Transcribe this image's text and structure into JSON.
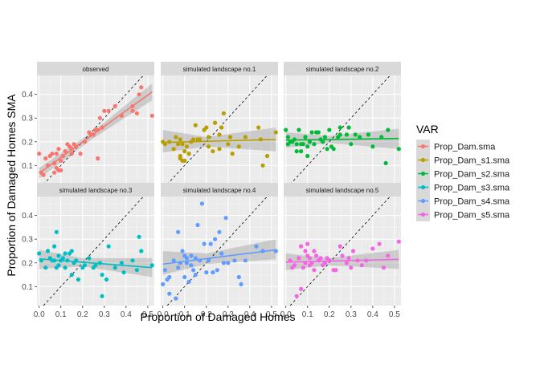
{
  "chart_data": {
    "type": "scatter",
    "facet_layout": "2x3 grid",
    "xlabel": "Proportion of Damaged Homes",
    "ylabel": "Proportion of Damaged Homes SMA",
    "xlim": [
      -0.01,
      0.53
    ],
    "ylim": [
      0.02,
      0.48
    ],
    "x_ticks": [
      0.0,
      0.1,
      0.2,
      0.3,
      0.4,
      0.5
    ],
    "x_tick_labels": [
      "0.0",
      "0.1",
      "0.2",
      "0.3",
      "0.4",
      "0.5"
    ],
    "y_ticks": [
      0.1,
      0.2,
      0.3,
      0.4
    ],
    "y_tick_labels": [
      "0.1",
      "0.2",
      "0.3",
      "0.4"
    ],
    "grid": true,
    "reference_line": "y = x (dashed)",
    "smooth": "linear fit with confidence band",
    "legend": {
      "title": "VAR",
      "placement": "right",
      "entries": [
        "Prop_Dam.sma",
        "Prop_Dam_s1.sma",
        "Prop_Dam_s2.sma",
        "Prop_Dam_s3.sma",
        "Prop_Dam_s4.sma",
        "Prop_Dam_s5.sma"
      ]
    },
    "panels": [
      {
        "strip": "observed",
        "series": "Prop_Dam.sma",
        "color": "#F8766D",
        "fit": {
          "x": [
            0.0,
            0.52
          ],
          "y": [
            0.068,
            0.41
          ]
        },
        "band": {
          "x": [
            0.0,
            0.25,
            0.52
          ],
          "lo": [
            0.045,
            0.215,
            0.375
          ],
          "hi": [
            0.09,
            0.245,
            0.445
          ]
        },
        "points": [
          [
            0.0,
            0.15
          ],
          [
            0.01,
            0.07
          ],
          [
            0.02,
            0.06
          ],
          [
            0.03,
            0.13
          ],
          [
            0.04,
            0.1
          ],
          [
            0.05,
            0.14
          ],
          [
            0.06,
            0.15
          ],
          [
            0.07,
            0.11
          ],
          [
            0.07,
            0.07
          ],
          [
            0.08,
            0.15
          ],
          [
            0.08,
            0.09
          ],
          [
            0.09,
            0.17
          ],
          [
            0.09,
            0.08
          ],
          [
            0.1,
            0.12
          ],
          [
            0.1,
            0.08
          ],
          [
            0.11,
            0.14
          ],
          [
            0.12,
            0.16
          ],
          [
            0.13,
            0.19
          ],
          [
            0.14,
            0.18
          ],
          [
            0.15,
            0.17
          ],
          [
            0.15,
            0.15
          ],
          [
            0.16,
            0.19
          ],
          [
            0.17,
            0.18
          ],
          [
            0.19,
            0.15
          ],
          [
            0.21,
            0.2
          ],
          [
            0.23,
            0.24
          ],
          [
            0.24,
            0.23
          ],
          [
            0.25,
            0.23
          ],
          [
            0.26,
            0.25
          ],
          [
            0.27,
            0.13
          ],
          [
            0.27,
            0.25
          ],
          [
            0.28,
            0.3
          ],
          [
            0.29,
            0.26
          ],
          [
            0.3,
            0.33
          ],
          [
            0.32,
            0.33
          ],
          [
            0.35,
            0.35
          ],
          [
            0.38,
            0.31
          ],
          [
            0.43,
            0.35
          ],
          [
            0.43,
            0.33
          ],
          [
            0.45,
            0.32
          ],
          [
            0.46,
            0.4
          ],
          [
            0.47,
            0.43
          ],
          [
            0.52,
            0.31
          ]
        ]
      },
      {
        "strip": "simulated landscape no.1",
        "series": "Prop_Dam_s1.sma",
        "color": "#B79F00",
        "fit": {
          "x": [
            0.0,
            0.52
          ],
          "y": [
            0.197,
            0.21
          ]
        },
        "band": {
          "x": [
            0.0,
            0.2,
            0.52
          ],
          "lo": [
            0.155,
            0.18,
            0.16
          ],
          "hi": [
            0.25,
            0.22,
            0.26
          ]
        },
        "points": [
          [
            0.0,
            0.2
          ],
          [
            0.01,
            0.19
          ],
          [
            0.03,
            0.2
          ],
          [
            0.05,
            0.17
          ],
          [
            0.06,
            0.22
          ],
          [
            0.07,
            0.19
          ],
          [
            0.08,
            0.14
          ],
          [
            0.08,
            0.21
          ],
          [
            0.08,
            0.13
          ],
          [
            0.09,
            0.12
          ],
          [
            0.09,
            0.19
          ],
          [
            0.1,
            0.16
          ],
          [
            0.1,
            0.12
          ],
          [
            0.11,
            0.18
          ],
          [
            0.12,
            0.15
          ],
          [
            0.13,
            0.2
          ],
          [
            0.14,
            0.21
          ],
          [
            0.15,
            0.27
          ],
          [
            0.16,
            0.21
          ],
          [
            0.17,
            0.21
          ],
          [
            0.19,
            0.25
          ],
          [
            0.2,
            0.26
          ],
          [
            0.21,
            0.18
          ],
          [
            0.21,
            0.22
          ],
          [
            0.23,
            0.16
          ],
          [
            0.24,
            0.28
          ],
          [
            0.26,
            0.23
          ],
          [
            0.26,
            0.17
          ],
          [
            0.27,
            0.26
          ],
          [
            0.28,
            0.32
          ],
          [
            0.3,
            0.19
          ],
          [
            0.31,
            0.22
          ],
          [
            0.32,
            0.15
          ],
          [
            0.35,
            0.18
          ],
          [
            0.38,
            0.22
          ],
          [
            0.44,
            0.26
          ],
          [
            0.45,
            0.21
          ],
          [
            0.46,
            0.1
          ],
          [
            0.48,
            0.14
          ],
          [
            0.52,
            0.24
          ]
        ]
      },
      {
        "strip": "simulated landscape no.2",
        "series": "Prop_Dam_s2.sma",
        "color": "#00BA38",
        "fit": {
          "x": [
            0.0,
            0.52
          ],
          "y": [
            0.207,
            0.214
          ]
        },
        "band": {
          "x": [
            0.0,
            0.2,
            0.52
          ],
          "lo": [
            0.175,
            0.195,
            0.17
          ],
          "hi": [
            0.24,
            0.225,
            0.255
          ]
        },
        "points": [
          [
            0.0,
            0.25
          ],
          [
            0.01,
            0.22
          ],
          [
            0.01,
            0.19
          ],
          [
            0.02,
            0.2
          ],
          [
            0.03,
            0.2
          ],
          [
            0.04,
            0.21
          ],
          [
            0.05,
            0.19
          ],
          [
            0.05,
            0.16
          ],
          [
            0.06,
            0.25
          ],
          [
            0.07,
            0.19
          ],
          [
            0.07,
            0.16
          ],
          [
            0.08,
            0.19
          ],
          [
            0.09,
            0.22
          ],
          [
            0.1,
            0.18
          ],
          [
            0.1,
            0.14
          ],
          [
            0.11,
            0.2
          ],
          [
            0.12,
            0.24
          ],
          [
            0.13,
            0.19
          ],
          [
            0.14,
            0.24
          ],
          [
            0.15,
            0.24
          ],
          [
            0.16,
            0.21
          ],
          [
            0.17,
            0.2
          ],
          [
            0.18,
            0.22
          ],
          [
            0.19,
            0.17
          ],
          [
            0.2,
            0.25
          ],
          [
            0.21,
            0.18
          ],
          [
            0.22,
            0.17
          ],
          [
            0.24,
            0.22
          ],
          [
            0.25,
            0.26
          ],
          [
            0.25,
            0.23
          ],
          [
            0.28,
            0.23
          ],
          [
            0.29,
            0.26
          ],
          [
            0.3,
            0.19
          ],
          [
            0.32,
            0.23
          ],
          [
            0.34,
            0.22
          ],
          [
            0.38,
            0.23
          ],
          [
            0.4,
            0.18
          ],
          [
            0.44,
            0.22
          ],
          [
            0.46,
            0.11
          ],
          [
            0.47,
            0.25
          ],
          [
            0.52,
            0.17
          ]
        ]
      },
      {
        "strip": "simulated landscape no.3",
        "series": "Prop_Dam_s3.sma",
        "color": "#00BFC4",
        "fit": {
          "x": [
            0.0,
            0.52
          ],
          "y": [
            0.217,
            0.18
          ]
        },
        "band": {
          "x": [
            0.0,
            0.2,
            0.52
          ],
          "lo": [
            0.175,
            0.185,
            0.14
          ],
          "hi": [
            0.255,
            0.22,
            0.22
          ]
        },
        "points": [
          [
            0.0,
            0.24
          ],
          [
            0.01,
            0.21
          ],
          [
            0.03,
            0.18
          ],
          [
            0.04,
            0.25
          ],
          [
            0.05,
            0.22
          ],
          [
            0.06,
            0.21
          ],
          [
            0.07,
            0.27
          ],
          [
            0.07,
            0.21
          ],
          [
            0.08,
            0.33
          ],
          [
            0.08,
            0.18
          ],
          [
            0.09,
            0.23
          ],
          [
            0.09,
            0.19
          ],
          [
            0.1,
            0.21
          ],
          [
            0.11,
            0.22
          ],
          [
            0.12,
            0.18
          ],
          [
            0.12,
            0.24
          ],
          [
            0.13,
            0.21
          ],
          [
            0.14,
            0.24
          ],
          [
            0.15,
            0.25
          ],
          [
            0.15,
            0.15
          ],
          [
            0.16,
            0.2
          ],
          [
            0.17,
            0.21
          ],
          [
            0.18,
            0.13
          ],
          [
            0.2,
            0.18
          ],
          [
            0.21,
            0.19
          ],
          [
            0.23,
            0.22
          ],
          [
            0.25,
            0.18
          ],
          [
            0.26,
            0.19
          ],
          [
            0.28,
            0.2
          ],
          [
            0.29,
            0.15
          ],
          [
            0.29,
            0.06
          ],
          [
            0.31,
            0.13
          ],
          [
            0.32,
            0.27
          ],
          [
            0.35,
            0.18
          ],
          [
            0.38,
            0.2
          ],
          [
            0.39,
            0.16
          ],
          [
            0.43,
            0.21
          ],
          [
            0.45,
            0.17
          ],
          [
            0.46,
            0.31
          ],
          [
            0.47,
            0.25
          ],
          [
            0.52,
            0.19
          ]
        ]
      },
      {
        "strip": "simulated landscape no.4",
        "series": "Prop_Dam_s4.sma",
        "color": "#619CFF",
        "fit": {
          "x": [
            0.0,
            0.52
          ],
          "y": [
            0.195,
            0.255
          ]
        },
        "band": {
          "x": [
            0.0,
            0.2,
            0.52
          ],
          "lo": [
            0.15,
            0.195,
            0.215
          ],
          "hi": [
            0.25,
            0.24,
            0.3
          ]
        },
        "points": [
          [
            0.0,
            0.11
          ],
          [
            0.01,
            0.17
          ],
          [
            0.02,
            0.13
          ],
          [
            0.03,
            0.07
          ],
          [
            0.03,
            0.14
          ],
          [
            0.05,
            0.21
          ],
          [
            0.06,
            0.05
          ],
          [
            0.07,
            0.33
          ],
          [
            0.07,
            0.18
          ],
          [
            0.08,
            0.2
          ],
          [
            0.09,
            0.25
          ],
          [
            0.1,
            0.23
          ],
          [
            0.1,
            0.14
          ],
          [
            0.11,
            0.22
          ],
          [
            0.11,
            0.2
          ],
          [
            0.12,
            0.12
          ],
          [
            0.13,
            0.19
          ],
          [
            0.13,
            0.23
          ],
          [
            0.14,
            0.17
          ],
          [
            0.15,
            0.15
          ],
          [
            0.15,
            0.22
          ],
          [
            0.16,
            0.36
          ],
          [
            0.17,
            0.21
          ],
          [
            0.18,
            0.45
          ],
          [
            0.19,
            0.28
          ],
          [
            0.2,
            0.16
          ],
          [
            0.21,
            0.21
          ],
          [
            0.22,
            0.28
          ],
          [
            0.23,
            0.16
          ],
          [
            0.24,
            0.3
          ],
          [
            0.25,
            0.17
          ],
          [
            0.26,
            0.33
          ],
          [
            0.27,
            0.24
          ],
          [
            0.28,
            0.2
          ],
          [
            0.29,
            0.39
          ],
          [
            0.3,
            0.2
          ],
          [
            0.33,
            0.21
          ],
          [
            0.35,
            0.14
          ],
          [
            0.36,
            0.11
          ],
          [
            0.38,
            0.21
          ],
          [
            0.43,
            0.27
          ],
          [
            0.46,
            0.25
          ],
          [
            0.52,
            0.25
          ]
        ]
      },
      {
        "strip": "simulated landscape no.5",
        "series": "Prop_Dam_s5.sma",
        "color": "#F564E3",
        "fit": {
          "x": [
            0.0,
            0.52
          ],
          "y": [
            0.203,
            0.215
          ]
        },
        "band": {
          "x": [
            0.0,
            0.2,
            0.52
          ],
          "lo": [
            0.17,
            0.19,
            0.175
          ],
          "hi": [
            0.24,
            0.22,
            0.255
          ]
        },
        "points": [
          [
            0.02,
            0.21
          ],
          [
            0.03,
            0.18
          ],
          [
            0.04,
            0.19
          ],
          [
            0.05,
            0.06
          ],
          [
            0.06,
            0.22
          ],
          [
            0.07,
            0.27
          ],
          [
            0.07,
            0.09
          ],
          [
            0.08,
            0.18
          ],
          [
            0.09,
            0.25
          ],
          [
            0.09,
            0.2
          ],
          [
            0.1,
            0.23
          ],
          [
            0.1,
            0.28
          ],
          [
            0.11,
            0.19
          ],
          [
            0.11,
            0.22
          ],
          [
            0.12,
            0.2
          ],
          [
            0.13,
            0.25
          ],
          [
            0.13,
            0.17
          ],
          [
            0.14,
            0.23
          ],
          [
            0.15,
            0.21
          ],
          [
            0.16,
            0.22
          ],
          [
            0.17,
            0.19
          ],
          [
            0.18,
            0.2
          ],
          [
            0.19,
            0.22
          ],
          [
            0.2,
            0.21
          ],
          [
            0.22,
            0.17
          ],
          [
            0.23,
            0.17
          ],
          [
            0.25,
            0.27
          ],
          [
            0.26,
            0.23
          ],
          [
            0.28,
            0.2
          ],
          [
            0.29,
            0.22
          ],
          [
            0.3,
            0.18
          ],
          [
            0.31,
            0.25
          ],
          [
            0.33,
            0.21
          ],
          [
            0.35,
            0.19
          ],
          [
            0.37,
            0.21
          ],
          [
            0.4,
            0.26
          ],
          [
            0.43,
            0.28
          ],
          [
            0.45,
            0.18
          ],
          [
            0.47,
            0.23
          ],
          [
            0.52,
            0.29
          ]
        ]
      }
    ]
  }
}
